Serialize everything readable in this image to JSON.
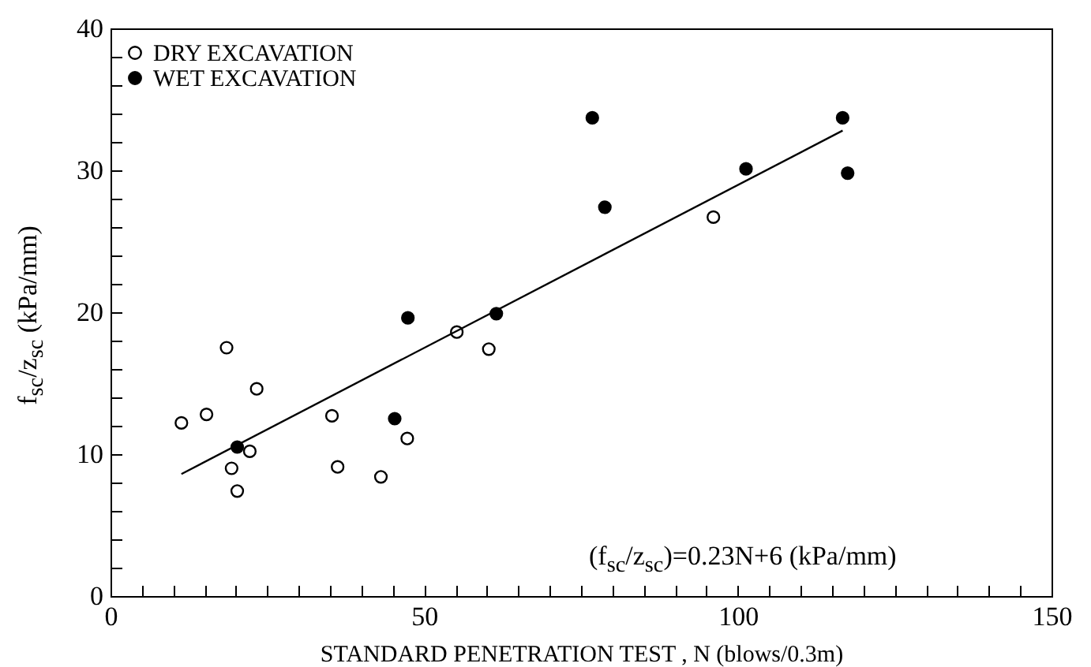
{
  "chart_data": {
    "type": "scatter",
    "xlabel": "STANDARD PENETRATION TEST , N (blows/0.3m)",
    "ylabel": "f$_{sc}$/z$_{sc}$  (kPa/mm)",
    "series": [
      {
        "name": "DRY EXCAVATION",
        "color": "#000000",
        "x": [
          11.3,
          15.3,
          18.5,
          19.3,
          20.2,
          22.2,
          23.3,
          35.3,
          36.2,
          43.1,
          47.3,
          55.2,
          60.3,
          96.1
        ],
        "values": [
          12.2,
          12.8,
          17.5,
          9.0,
          7.4,
          10.2,
          14.6,
          12.7,
          9.1,
          8.4,
          11.1,
          18.6,
          17.4,
          26.7
        ]
      },
      {
        "name": "WET EXCAVATION",
        "color": "#000000",
        "x": [
          20.2,
          45.3,
          47.4,
          61.5,
          76.8,
          78.8,
          101.3,
          116.7,
          117.5
        ],
        "values": [
          10.5,
          12.5,
          19.6,
          19.9,
          33.7,
          27.4,
          30.1,
          33.7,
          29.8
        ]
      },
      {
        "type": "line",
        "color": "#000000",
        "marker": "none",
        "x": [
          11.3,
          116.7
        ],
        "values": [
          8.6,
          32.8
        ]
      }
    ],
    "annotations": [
      "(f$_{sc}$/z$_{sc}$)=0.23N+6  (kPa/mm)"
    ],
    "xlim": [
      0,
      150
    ],
    "ylim": [
      0,
      40
    ],
    "xticks": [
      0,
      {
        "value": 5,
        "label": null
      },
      {
        "value": 10,
        "label": null
      },
      {
        "value": 15,
        "label": null
      },
      {
        "value": 20,
        "label": null
      },
      {
        "value": 25,
        "label": null
      },
      {
        "value": 30,
        "label": null
      },
      {
        "value": 35,
        "label": null
      },
      {
        "value": 40,
        "label": null
      },
      {
        "value": 45,
        "label": null
      },
      50,
      {
        "value": 55,
        "label": null
      },
      {
        "value": 60,
        "label": null
      },
      {
        "value": 65,
        "label": null
      },
      {
        "value": 70,
        "label": null
      },
      {
        "value": 75,
        "label": null
      },
      {
        "value": 80,
        "label": null
      },
      {
        "value": 85,
        "label": null
      },
      {
        "value": 90,
        "label": null
      },
      {
        "value": 95,
        "label": null
      },
      100,
      {
        "value": 105,
        "label": null
      },
      {
        "value": 110,
        "label": null
      },
      {
        "value": 115,
        "label": null
      },
      {
        "value": 120,
        "label": null
      },
      {
        "value": 125,
        "label": null
      },
      {
        "value": 130,
        "label": null
      },
      {
        "value": 135,
        "label": null
      },
      {
        "value": 140,
        "label": null
      },
      {
        "value": 145,
        "label": null
      },
      150
    ],
    "yticks": [
      0,
      {
        "value": 2,
        "label": null
      },
      {
        "value": 4,
        "label": null
      },
      {
        "value": 6,
        "label": null
      },
      {
        "value": 8,
        "label": null
      },
      10,
      {
        "value": 12,
        "label": null
      },
      {
        "value": 14,
        "label": null
      },
      {
        "value": 16,
        "label": null
      },
      {
        "value": 18,
        "label": null
      },
      20,
      {
        "value": 22,
        "label": null
      },
      {
        "value": 24,
        "label": null
      },
      {
        "value": 26,
        "label": null
      },
      {
        "value": 28,
        "label": null
      },
      30,
      {
        "value": 32,
        "label": null
      },
      {
        "value": 34,
        "label": null
      },
      {
        "value": 36,
        "label": null
      },
      {
        "value": 38,
        "label": null
      },
      40
    ],
    "grid": false,
    "legend": "top left",
    "marker": "circle"
  }
}
